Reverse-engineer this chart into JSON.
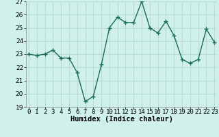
{
  "xlabel": "Humidex (Indice chaleur)",
  "x": [
    0,
    1,
    2,
    3,
    4,
    5,
    6,
    7,
    8,
    9,
    10,
    11,
    12,
    13,
    14,
    15,
    16,
    17,
    18,
    19,
    20,
    21,
    22,
    23
  ],
  "y": [
    23.0,
    22.9,
    23.0,
    23.3,
    22.7,
    22.7,
    21.6,
    19.4,
    19.8,
    22.2,
    25.0,
    25.8,
    25.4,
    25.4,
    27.0,
    25.0,
    24.6,
    25.5,
    24.4,
    22.6,
    22.3,
    22.6,
    24.9,
    23.9
  ],
  "line_color": "#1a6b5a",
  "marker": "+",
  "marker_size": 4,
  "marker_linewidth": 1.0,
  "line_width": 1.0,
  "bg_color": "#cff0eb",
  "grid_color": "#b8ddd8",
  "ylim": [
    19,
    27
  ],
  "yticks": [
    19,
    20,
    21,
    22,
    23,
    24,
    25,
    26,
    27
  ],
  "xticks": [
    0,
    1,
    2,
    3,
    4,
    5,
    6,
    7,
    8,
    9,
    10,
    11,
    12,
    13,
    14,
    15,
    16,
    17,
    18,
    19,
    20,
    21,
    22,
    23
  ],
  "tick_fontsize": 6.5,
  "xlabel_fontsize": 7.5,
  "xlim": [
    -0.3,
    23.3
  ]
}
